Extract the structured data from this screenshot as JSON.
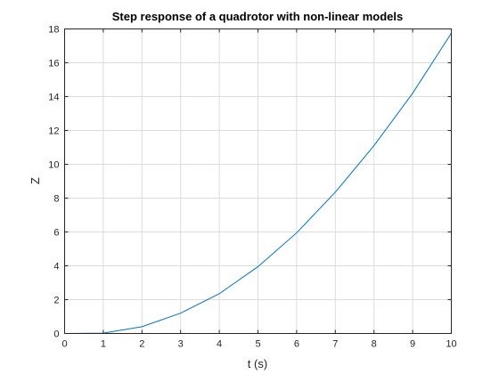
{
  "chart_data": {
    "type": "line",
    "title": "Step response of a quadrotor with non-linear models",
    "xlabel": "t (s)",
    "ylabel": "Z",
    "xlim": [
      0,
      10
    ],
    "ylim": [
      0,
      18
    ],
    "xticks": [
      0,
      1,
      2,
      3,
      4,
      5,
      6,
      7,
      8,
      9,
      10
    ],
    "yticks": [
      0,
      2,
      4,
      6,
      8,
      10,
      12,
      14,
      16,
      18
    ],
    "grid": true,
    "series": [
      {
        "color": "#0072bd",
        "x": [
          0,
          1,
          2,
          3,
          4,
          5,
          6,
          7,
          8,
          9,
          10
        ],
        "y": [
          0,
          0.02,
          0.4,
          1.2,
          2.35,
          3.95,
          5.95,
          8.35,
          11.1,
          14.2,
          17.75
        ]
      }
    ]
  }
}
